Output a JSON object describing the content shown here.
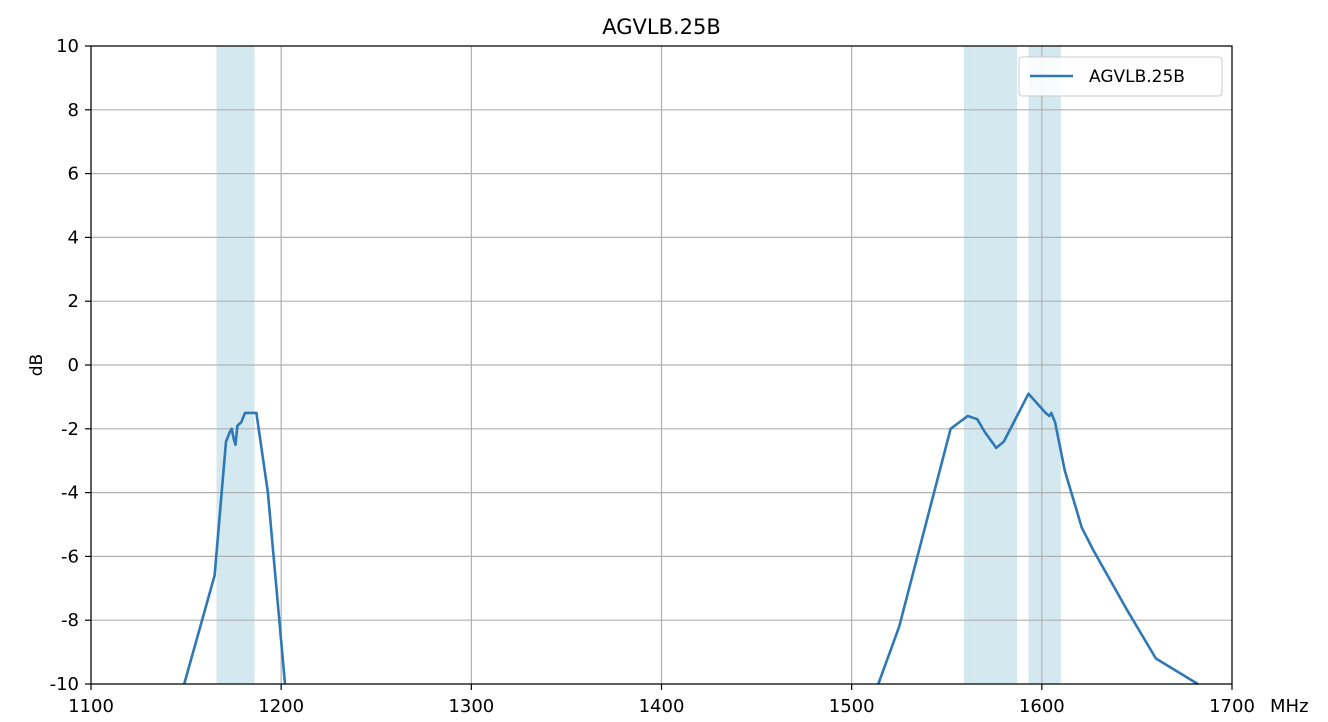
{
  "chart_data": {
    "type": "line",
    "title": "AGVLB.25B",
    "xlabel": "",
    "ylabel": "dB",
    "x_unit_label": "MHz",
    "xlim": [
      1100,
      1700
    ],
    "ylim": [
      -10,
      10
    ],
    "x_ticks": [
      1100,
      1200,
      1300,
      1400,
      1500,
      1600,
      1700
    ],
    "y_ticks": [
      -10,
      -8,
      -6,
      -4,
      -2,
      0,
      2,
      4,
      6,
      8,
      10
    ],
    "grid": true,
    "legend_position": "top-right",
    "line_color": "#2e78b6",
    "band_color": "#d4e8f0",
    "grid_color": "#b0b0b0",
    "bands": [
      {
        "x0": 1166,
        "x1": 1186
      },
      {
        "x0": 1559,
        "x1": 1564
      },
      {
        "x0": 1564,
        "x1": 1587
      },
      {
        "x0": 1593,
        "x1": 1610
      }
    ],
    "series": [
      {
        "name": "AGVLB.25B",
        "segments": [
          [
            {
              "x": 1149,
              "y": -10
            },
            {
              "x": 1165,
              "y": -6.6
            },
            {
              "x": 1171,
              "y": -2.4
            },
            {
              "x": 1173,
              "y": -2.1
            },
            {
              "x": 1174,
              "y": -2.0
            },
            {
              "x": 1175,
              "y": -2.3
            },
            {
              "x": 1176,
              "y": -2.5
            },
            {
              "x": 1177,
              "y": -1.9
            },
            {
              "x": 1179,
              "y": -1.8
            },
            {
              "x": 1181,
              "y": -1.5
            },
            {
              "x": 1185,
              "y": -1.5
            },
            {
              "x": 1187,
              "y": -1.5
            },
            {
              "x": 1193,
              "y": -4.0
            },
            {
              "x": 1202,
              "y": -10
            }
          ],
          [
            {
              "x": 1514,
              "y": -10
            },
            {
              "x": 1525,
              "y": -8.2
            },
            {
              "x": 1552,
              "y": -2.0
            },
            {
              "x": 1561,
              "y": -1.6
            },
            {
              "x": 1566,
              "y": -1.7
            },
            {
              "x": 1570,
              "y": -2.1
            },
            {
              "x": 1576,
              "y": -2.6
            },
            {
              "x": 1580,
              "y": -2.4
            },
            {
              "x": 1593,
              "y": -0.9
            },
            {
              "x": 1602,
              "y": -1.5
            },
            {
              "x": 1604,
              "y": -1.6
            },
            {
              "x": 1605,
              "y": -1.5
            },
            {
              "x": 1607,
              "y": -1.8
            },
            {
              "x": 1612,
              "y": -3.3
            },
            {
              "x": 1621,
              "y": -5.1
            },
            {
              "x": 1627,
              "y": -5.8
            },
            {
              "x": 1645,
              "y": -7.7
            },
            {
              "x": 1660,
              "y": -9.2
            },
            {
              "x": 1682,
              "y": -10
            }
          ]
        ]
      }
    ]
  }
}
